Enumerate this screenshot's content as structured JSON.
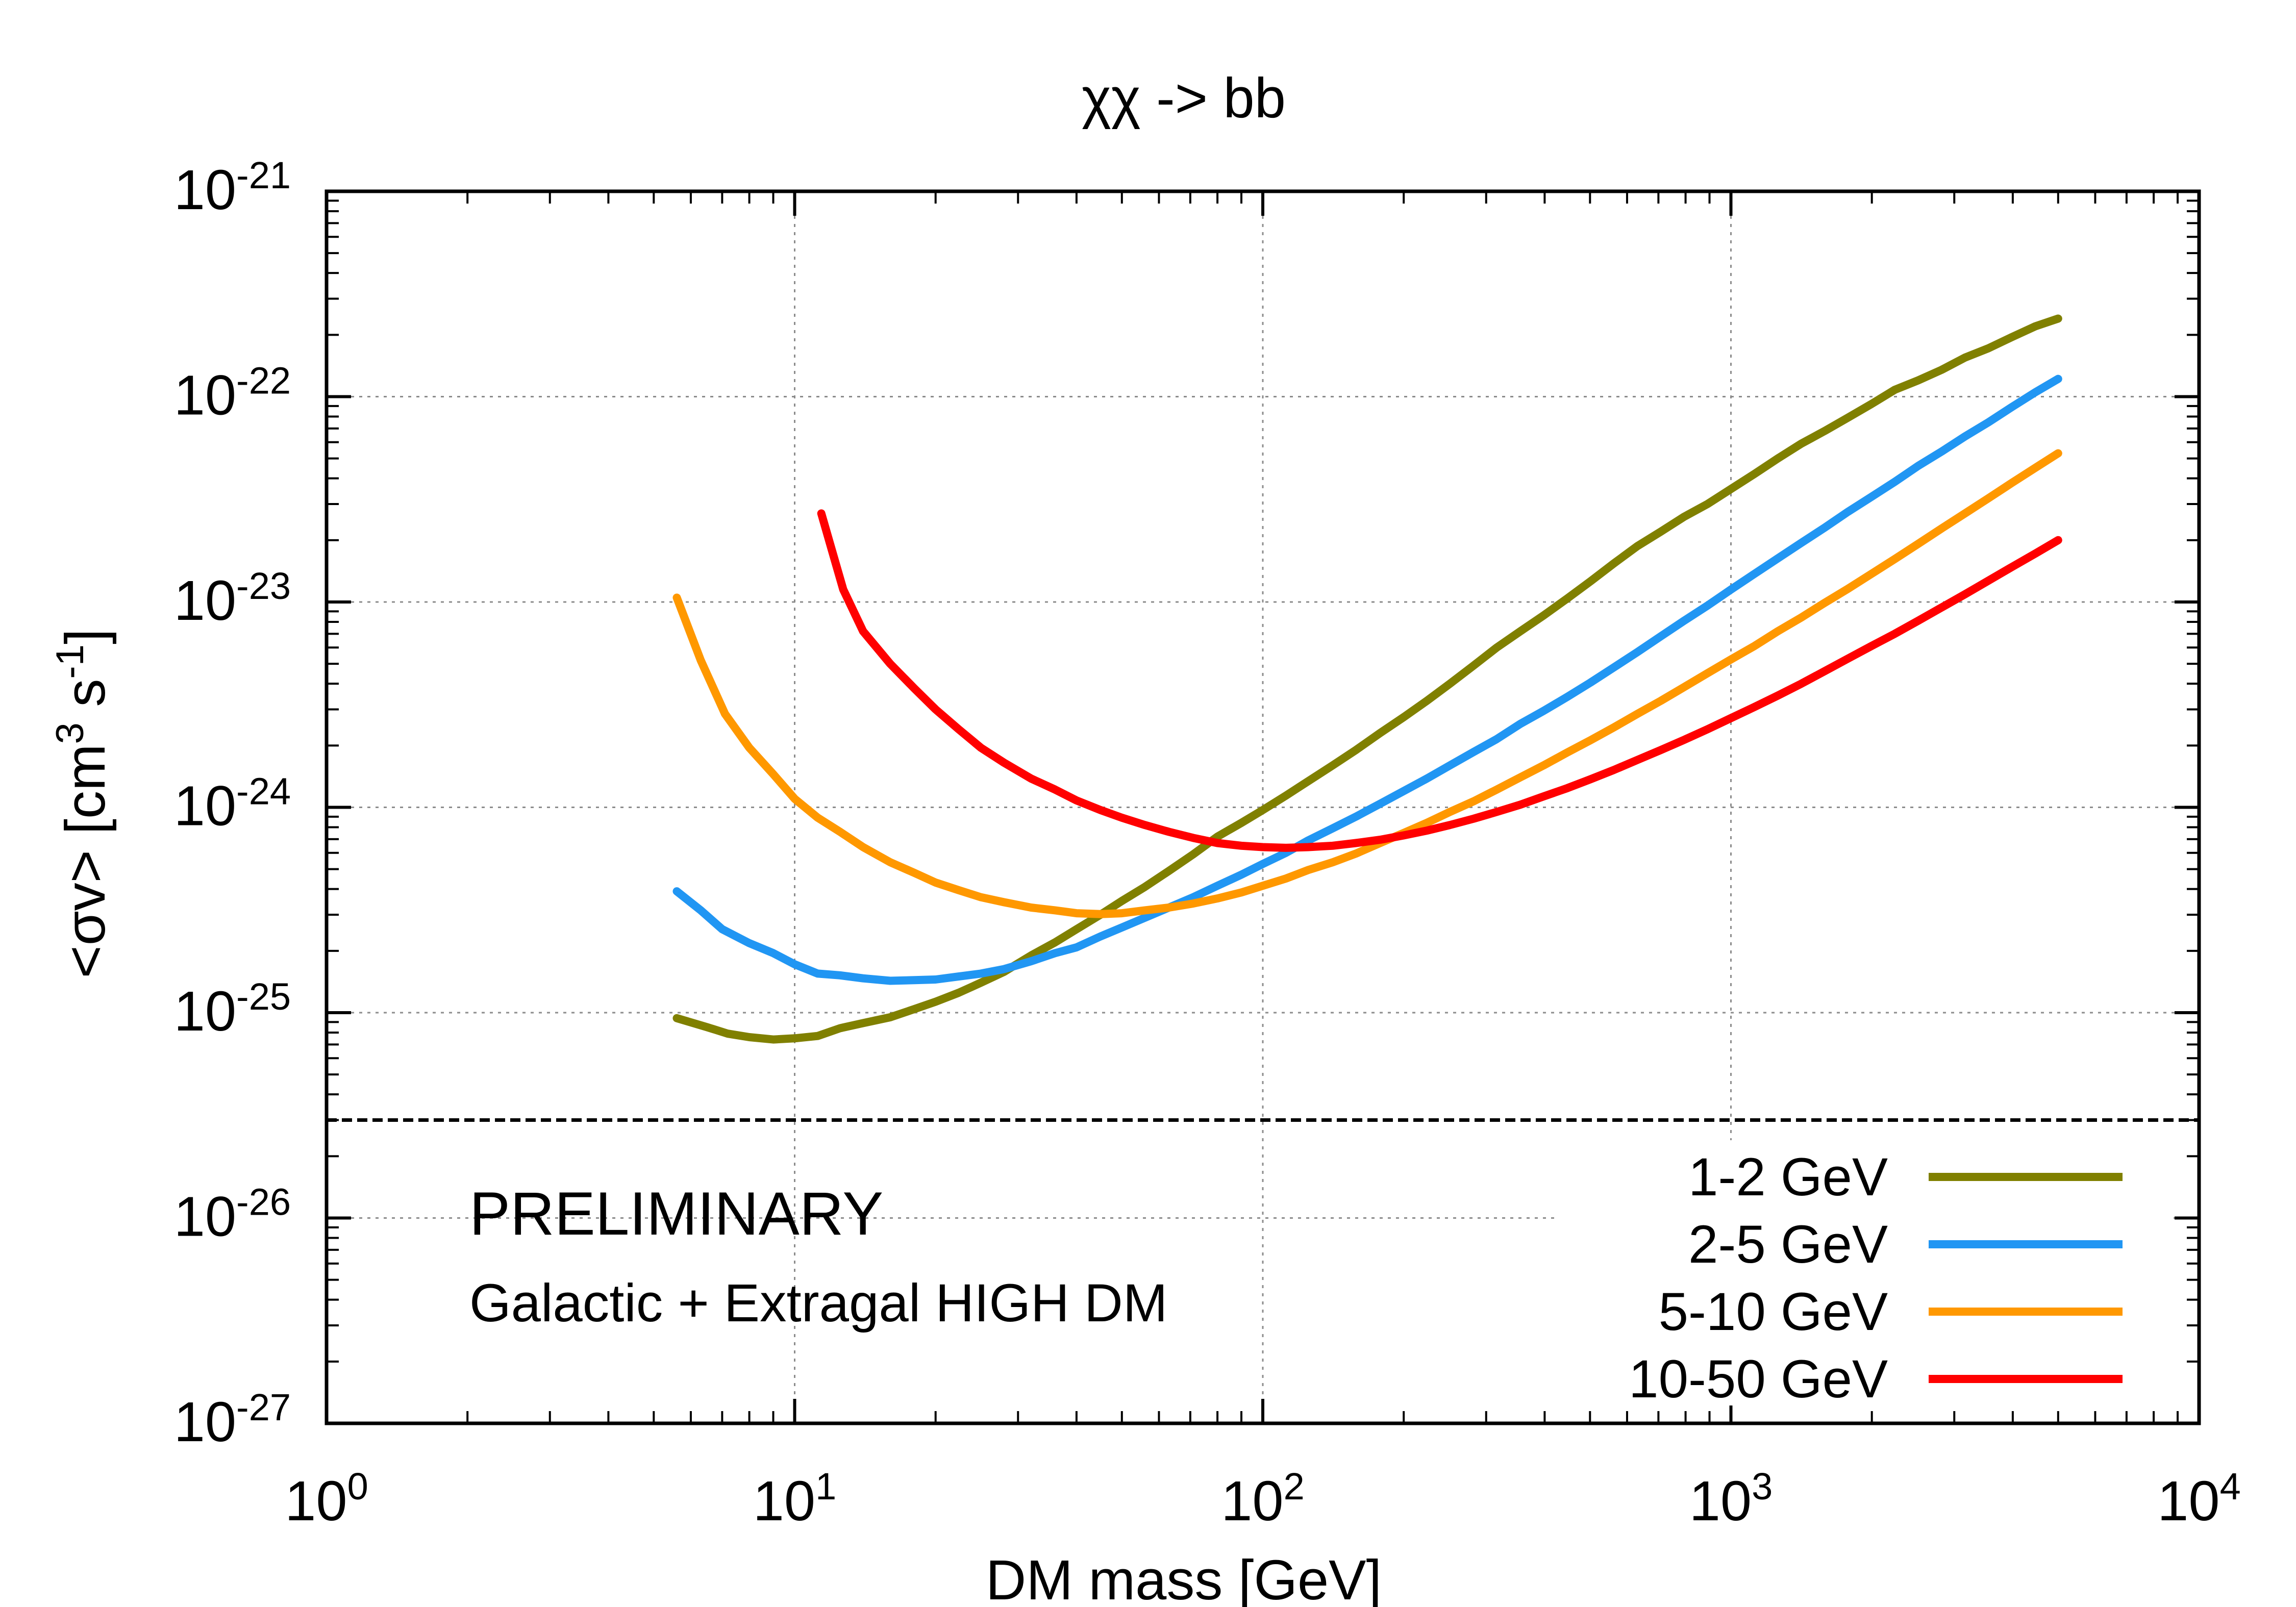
{
  "chart_data": {
    "type": "line",
    "title": "χχ -> bb",
    "xlabel": "DM mass [GeV]",
    "ylabel": {
      "prefix": "<σv> [cm",
      "exp1": "3",
      "middle": " s",
      "exp2": "-1",
      "suffix": "]"
    },
    "x_scale": "log",
    "y_scale": "log",
    "xlim": [
      1,
      10000
    ],
    "ylim": [
      1e-27,
      1e-21
    ],
    "grid": true,
    "legend_position": "bottom-right",
    "x_ticks": [
      {
        "value": 1,
        "base": "10",
        "exp": "0"
      },
      {
        "value": 10,
        "base": "10",
        "exp": "1"
      },
      {
        "value": 100,
        "base": "10",
        "exp": "2"
      },
      {
        "value": 1000,
        "base": "10",
        "exp": "3"
      },
      {
        "value": 10000,
        "base": "10",
        "exp": "4"
      }
    ],
    "y_ticks": [
      {
        "value": 1e-21,
        "base": "10",
        "exp": "-21"
      },
      {
        "value": 1e-22,
        "base": "10",
        "exp": "-22"
      },
      {
        "value": 1e-23,
        "base": "10",
        "exp": "-23"
      },
      {
        "value": 1e-24,
        "base": "10",
        "exp": "-24"
      },
      {
        "value": 1e-25,
        "base": "10",
        "exp": "-25"
      },
      {
        "value": 1e-26,
        "base": "10",
        "exp": "-26"
      },
      {
        "value": 1e-27,
        "base": "10",
        "exp": "-27"
      }
    ],
    "reference_line": {
      "value": 3e-26,
      "style": "dashed",
      "color": "#000000"
    },
    "annotations": [
      {
        "text": "PRELIMINARY",
        "color": "#ff0000"
      },
      {
        "text": "Galactic + Extragal HIGH DM",
        "color": "#000000"
      }
    ],
    "series": [
      {
        "name": "1-2 GeV",
        "color": "#808000",
        "points": [
          [
            5.6,
            9.4e-26
          ],
          [
            6.5,
            8.5e-26
          ],
          [
            7.2,
            7.9e-26
          ],
          [
            8.0,
            7.6e-26
          ],
          [
            9.0,
            7.4e-26
          ],
          [
            10.0,
            7.5e-26
          ],
          [
            11.2,
            7.7e-26
          ],
          [
            12.5,
            8.4e-26
          ],
          [
            14.0,
            8.9e-26
          ],
          [
            16.0,
            9.5e-26
          ],
          [
            18.0,
            1.04e-25
          ],
          [
            20.0,
            1.13e-25
          ],
          [
            22.4,
            1.25e-25
          ],
          [
            25.0,
            1.4e-25
          ],
          [
            28.0,
            1.58e-25
          ],
          [
            32.0,
            1.9e-25
          ],
          [
            36.0,
            2.2e-25
          ],
          [
            40.0,
            2.55e-25
          ],
          [
            45.0,
            3e-25
          ],
          [
            50.0,
            3.5e-25
          ],
          [
            56.0,
            4.1e-25
          ],
          [
            63.0,
            4.9e-25
          ],
          [
            71.0,
            5.9e-25
          ],
          [
            80.0,
            7.2e-25
          ],
          [
            90.0,
            8.4e-25
          ],
          [
            100.0,
            9.7e-25
          ],
          [
            112.0,
            1.14e-24
          ],
          [
            125.0,
            1.34e-24
          ],
          [
            141.0,
            1.6e-24
          ],
          [
            158.0,
            1.9e-24
          ],
          [
            178.0,
            2.3e-24
          ],
          [
            200.0,
            2.75e-24
          ],
          [
            224.0,
            3.3e-24
          ],
          [
            251.0,
            4e-24
          ],
          [
            282.0,
            4.9e-24
          ],
          [
            316.0,
            6e-24
          ],
          [
            355.0,
            7.2e-24
          ],
          [
            398.0,
            8.6e-24
          ],
          [
            447.0,
            1.04e-23
          ],
          [
            501.0,
            1.26e-23
          ],
          [
            562.0,
            1.54e-23
          ],
          [
            631.0,
            1.87e-23
          ],
          [
            708.0,
            2.2e-23
          ],
          [
            794.0,
            2.6e-23
          ],
          [
            891.0,
            3e-23
          ],
          [
            1000.0,
            3.55e-23
          ],
          [
            1122.0,
            4.2e-23
          ],
          [
            1259.0,
            5e-23
          ],
          [
            1413.0,
            5.9e-23
          ],
          [
            1585.0,
            6.8e-23
          ],
          [
            1778.0,
            7.9e-23
          ],
          [
            1995.0,
            9.2e-23
          ],
          [
            2239.0,
            1.08e-22
          ],
          [
            2512.0,
            1.2e-22
          ],
          [
            2818.0,
            1.35e-22
          ],
          [
            3162.0,
            1.55e-22
          ],
          [
            3548.0,
            1.72e-22
          ],
          [
            3981.0,
            1.95e-22
          ],
          [
            4467.0,
            2.2e-22
          ],
          [
            5000.0,
            2.4e-22
          ]
        ]
      },
      {
        "name": "2-5 GeV",
        "color": "#2196f3",
        "points": [
          [
            5.6,
            3.9e-25
          ],
          [
            6.3,
            3.15e-25
          ],
          [
            7.0,
            2.55e-25
          ],
          [
            8.0,
            2.18e-25
          ],
          [
            9.0,
            1.95e-25
          ],
          [
            10.0,
            1.72e-25
          ],
          [
            11.2,
            1.55e-25
          ],
          [
            12.5,
            1.52e-25
          ],
          [
            14.0,
            1.47e-25
          ],
          [
            16.0,
            1.43e-25
          ],
          [
            18.0,
            1.44e-25
          ],
          [
            20.0,
            1.45e-25
          ],
          [
            22.4,
            1.5e-25
          ],
          [
            25.0,
            1.55e-25
          ],
          [
            28.0,
            1.63e-25
          ],
          [
            32.0,
            1.78e-25
          ],
          [
            36.0,
            1.95e-25
          ],
          [
            40.0,
            2.08e-25
          ],
          [
            45.0,
            2.35e-25
          ],
          [
            50.0,
            2.6e-25
          ],
          [
            56.0,
            2.9e-25
          ],
          [
            63.0,
            3.25e-25
          ],
          [
            71.0,
            3.65e-25
          ],
          [
            80.0,
            4.15e-25
          ],
          [
            90.0,
            4.7e-25
          ],
          [
            100.0,
            5.3e-25
          ],
          [
            112.0,
            6e-25
          ],
          [
            125.0,
            6.9e-25
          ],
          [
            141.0,
            7.9e-25
          ],
          [
            158.0,
            9e-25
          ],
          [
            178.0,
            1.04e-24
          ],
          [
            200.0,
            1.2e-24
          ],
          [
            224.0,
            1.38e-24
          ],
          [
            251.0,
            1.6e-24
          ],
          [
            282.0,
            1.86e-24
          ],
          [
            316.0,
            2.15e-24
          ],
          [
            355.0,
            2.55e-24
          ],
          [
            398.0,
            2.95e-24
          ],
          [
            447.0,
            3.45e-24
          ],
          [
            501.0,
            4.05e-24
          ],
          [
            562.0,
            4.8e-24
          ],
          [
            631.0,
            5.7e-24
          ],
          [
            708.0,
            6.8e-24
          ],
          [
            794.0,
            8.1e-24
          ],
          [
            891.0,
            9.6e-24
          ],
          [
            1000.0,
            1.15e-23
          ],
          [
            1122.0,
            1.37e-23
          ],
          [
            1259.0,
            1.63e-23
          ],
          [
            1413.0,
            1.94e-23
          ],
          [
            1585.0,
            2.3e-23
          ],
          [
            1778.0,
            2.75e-23
          ],
          [
            1995.0,
            3.25e-23
          ],
          [
            2239.0,
            3.85e-23
          ],
          [
            2512.0,
            4.6e-23
          ],
          [
            2818.0,
            5.4e-23
          ],
          [
            3162.0,
            6.4e-23
          ],
          [
            3548.0,
            7.5e-23
          ],
          [
            3981.0,
            8.9e-23
          ],
          [
            4467.0,
            1.05e-22
          ],
          [
            5000.0,
            1.22e-22
          ]
        ]
      },
      {
        "name": "5-10 GeV",
        "color": "#ff9800",
        "points": [
          [
            5.6,
            1.05e-23
          ],
          [
            6.3,
            5.2e-24
          ],
          [
            7.1,
            2.85e-24
          ],
          [
            8.0,
            1.95e-24
          ],
          [
            9.0,
            1.45e-24
          ],
          [
            10.0,
            1.1e-24
          ],
          [
            11.2,
            8.9e-25
          ],
          [
            12.5,
            7.6e-25
          ],
          [
            14.0,
            6.4e-25
          ],
          [
            16.0,
            5.4e-25
          ],
          [
            18.0,
            4.8e-25
          ],
          [
            20.0,
            4.3e-25
          ],
          [
            22.4,
            3.95e-25
          ],
          [
            25.0,
            3.65e-25
          ],
          [
            28.0,
            3.45e-25
          ],
          [
            32.0,
            3.25e-25
          ],
          [
            36.0,
            3.15e-25
          ],
          [
            40.0,
            3.05e-25
          ],
          [
            45.0,
            3.02e-25
          ],
          [
            50.0,
            3.05e-25
          ],
          [
            56.0,
            3.15e-25
          ],
          [
            63.0,
            3.25e-25
          ],
          [
            71.0,
            3.4e-25
          ],
          [
            80.0,
            3.6e-25
          ],
          [
            90.0,
            3.85e-25
          ],
          [
            100.0,
            4.15e-25
          ],
          [
            112.0,
            4.5e-25
          ],
          [
            125.0,
            4.95e-25
          ],
          [
            141.0,
            5.4e-25
          ],
          [
            158.0,
            5.95e-25
          ],
          [
            178.0,
            6.7e-25
          ],
          [
            200.0,
            7.5e-25
          ],
          [
            224.0,
            8.4e-25
          ],
          [
            251.0,
            9.5e-25
          ],
          [
            282.0,
            1.07e-24
          ],
          [
            316.0,
            1.22e-24
          ],
          [
            355.0,
            1.4e-24
          ],
          [
            398.0,
            1.6e-24
          ],
          [
            447.0,
            1.85e-24
          ],
          [
            501.0,
            2.12e-24
          ],
          [
            562.0,
            2.45e-24
          ],
          [
            631.0,
            2.85e-24
          ],
          [
            708.0,
            3.3e-24
          ],
          [
            794.0,
            3.85e-24
          ],
          [
            891.0,
            4.5e-24
          ],
          [
            1000.0,
            5.25e-24
          ],
          [
            1122.0,
            6.1e-24
          ],
          [
            1259.0,
            7.2e-24
          ],
          [
            1413.0,
            8.4e-24
          ],
          [
            1585.0,
            9.9e-24
          ],
          [
            1778.0,
            1.16e-23
          ],
          [
            1995.0,
            1.37e-23
          ],
          [
            2239.0,
            1.62e-23
          ],
          [
            2512.0,
            1.92e-23
          ],
          [
            2818.0,
            2.28e-23
          ],
          [
            3162.0,
            2.7e-23
          ],
          [
            3548.0,
            3.2e-23
          ],
          [
            3981.0,
            3.8e-23
          ],
          [
            4467.0,
            4.5e-23
          ],
          [
            5000.0,
            5.3e-23
          ]
        ]
      },
      {
        "name": "10-50 GeV",
        "color": "#ff0000",
        "points": [
          [
            11.4,
            2.7e-23
          ],
          [
            12.0,
            1.8e-23
          ],
          [
            12.7,
            1.15e-23
          ],
          [
            14.0,
            7.2e-24
          ],
          [
            16.0,
            5e-24
          ],
          [
            18.0,
            3.8e-24
          ],
          [
            20.0,
            3e-24
          ],
          [
            22.4,
            2.4e-24
          ],
          [
            25.0,
            1.95e-24
          ],
          [
            28.0,
            1.65e-24
          ],
          [
            32.0,
            1.38e-24
          ],
          [
            36.0,
            1.22e-24
          ],
          [
            40.0,
            1.08e-24
          ],
          [
            45.0,
            9.7e-25
          ],
          [
            50.0,
            8.9e-25
          ],
          [
            56.0,
            8.2e-25
          ],
          [
            63.0,
            7.6e-25
          ],
          [
            71.0,
            7.1e-25
          ],
          [
            80.0,
            6.7e-25
          ],
          [
            90.0,
            6.5e-25
          ],
          [
            100.0,
            6.4e-25
          ],
          [
            112.0,
            6.35e-25
          ],
          [
            125.0,
            6.4e-25
          ],
          [
            141.0,
            6.5e-25
          ],
          [
            158.0,
            6.7e-25
          ],
          [
            178.0,
            6.95e-25
          ],
          [
            200.0,
            7.3e-25
          ],
          [
            224.0,
            7.7e-25
          ],
          [
            251.0,
            8.2e-25
          ],
          [
            282.0,
            8.8e-25
          ],
          [
            316.0,
            9.5e-25
          ],
          [
            355.0,
            1.03e-24
          ],
          [
            398.0,
            1.13e-24
          ],
          [
            447.0,
            1.24e-24
          ],
          [
            501.0,
            1.37e-24
          ],
          [
            562.0,
            1.52e-24
          ],
          [
            631.0,
            1.7e-24
          ],
          [
            708.0,
            1.9e-24
          ],
          [
            794.0,
            2.13e-24
          ],
          [
            891.0,
            2.4e-24
          ],
          [
            1000.0,
            2.72e-24
          ],
          [
            1122.0,
            3.08e-24
          ],
          [
            1259.0,
            3.5e-24
          ],
          [
            1413.0,
            4e-24
          ],
          [
            1585.0,
            4.6e-24
          ],
          [
            1778.0,
            5.3e-24
          ],
          [
            1995.0,
            6.1e-24
          ],
          [
            2239.0,
            7e-24
          ],
          [
            2512.0,
            8.1e-24
          ],
          [
            2818.0,
            9.4e-24
          ],
          [
            3162.0,
            1.09e-23
          ],
          [
            3548.0,
            1.27e-23
          ],
          [
            3981.0,
            1.48e-23
          ],
          [
            4467.0,
            1.72e-23
          ],
          [
            5000.0,
            2e-23
          ]
        ]
      }
    ]
  }
}
